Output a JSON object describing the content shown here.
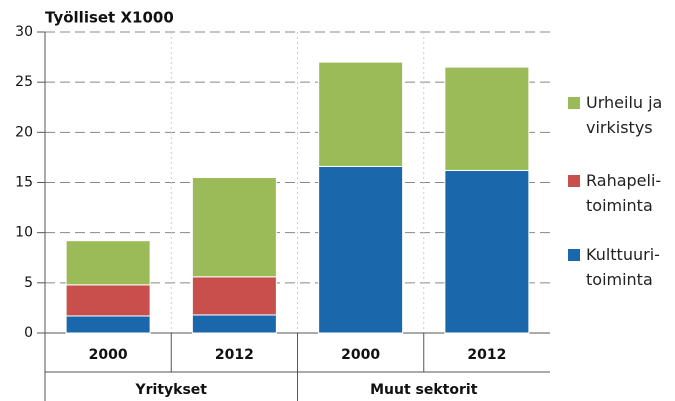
{
  "chart_data": {
    "type": "stacked_bar",
    "title": "Työlliset X1000",
    "categories": [
      "2000",
      "2012",
      "2000",
      "2012"
    ],
    "groups": [
      "Yritykset",
      "Muut sektorit"
    ],
    "series": [
      {
        "name": "Kulttuuri-toiminta",
        "color": "#1a67ab",
        "values": [
          1.7,
          1.8,
          16.6,
          16.2
        ]
      },
      {
        "name": "Rahapeli-toiminta",
        "color": "#c94f4c",
        "values": [
          3.1,
          3.8,
          0,
          0
        ]
      },
      {
        "name": "Urheilu ja virkistys",
        "color": "#9bbb59",
        "values": [
          4.4,
          9.9,
          10.4,
          10.3
        ]
      }
    ],
    "ylim": [
      0,
      30
    ],
    "yticks": [
      0,
      5,
      10,
      15,
      20,
      25,
      30
    ],
    "grid": true,
    "legend": "right"
  }
}
